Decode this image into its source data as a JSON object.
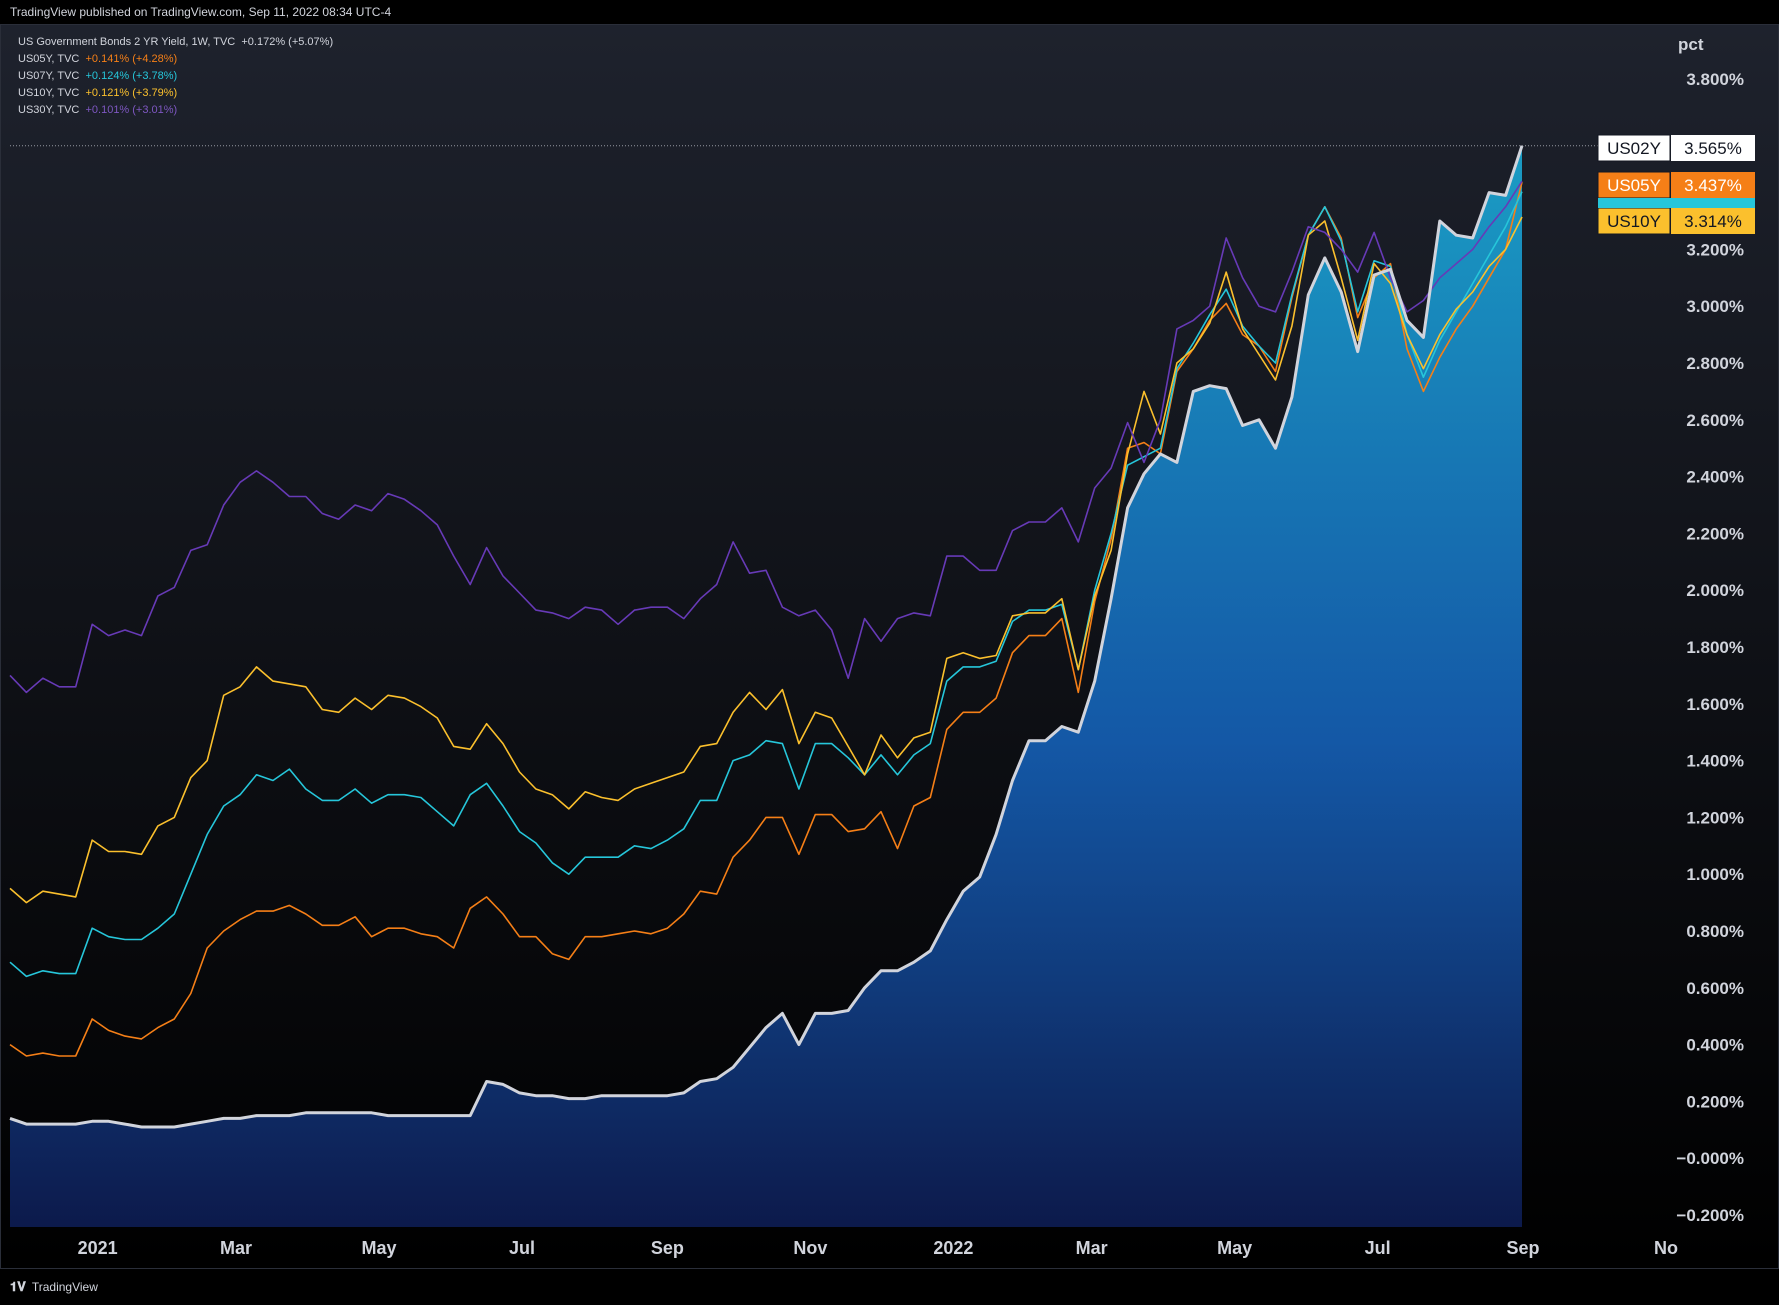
{
  "header": {
    "published": "TradingView published on TradingView.com, Sep 11, 2022 08:34 UTC-4"
  },
  "legend": [
    {
      "name": "US Government Bonds 2 YR Yield, 1W, TVC",
      "change": "+0.172% (+5.07%)",
      "color": "#d1d4dc"
    },
    {
      "name": "US05Y, TVC",
      "change": "+0.141% (+4.28%)",
      "color": "#f57f17"
    },
    {
      "name": "US07Y, TVC",
      "change": "+0.124% (+3.78%)",
      "color": "#26c6da"
    },
    {
      "name": "US10Y, TVC",
      "change": "+0.121% (+3.79%)",
      "color": "#fbc02d"
    },
    {
      "name": "US30Y, TVC",
      "change": "+0.101% (+3.01%)",
      "color": "#673ab7"
    }
  ],
  "footer": {
    "brand": "TradingView",
    "logo": "tradingview-logo-icon"
  },
  "chart_data": {
    "type": "line",
    "y_unit": "pct",
    "ylim": [
      -0.2,
      3.8
    ],
    "y_ticks": [
      "3.800%",
      "3.200%",
      "3.000%",
      "2.800%",
      "2.600%",
      "2.400%",
      "2.200%",
      "2.000%",
      "1.800%",
      "1.600%",
      "1.400%",
      "1.200%",
      "1.000%",
      "0.800%",
      "0.600%",
      "0.400%",
      "0.200%",
      "−0.000%",
      "−0.200%"
    ],
    "y_tick_values": [
      3.8,
      3.2,
      3.0,
      2.8,
      2.6,
      2.4,
      2.2,
      2.0,
      1.8,
      1.6,
      1.4,
      1.2,
      1.0,
      0.8,
      0.6,
      0.4,
      0.2,
      0.0,
      -0.2
    ],
    "x_ticks": [
      {
        "label": "2021",
        "bold": true,
        "date": "2021-01"
      },
      {
        "label": "Mar",
        "bold": false,
        "date": "2021-03"
      },
      {
        "label": "May",
        "bold": false,
        "date": "2021-05"
      },
      {
        "label": "Jul",
        "bold": false,
        "date": "2021-07"
      },
      {
        "label": "Sep",
        "bold": false,
        "date": "2021-09"
      },
      {
        "label": "Nov",
        "bold": false,
        "date": "2021-11"
      },
      {
        "label": "2022",
        "bold": true,
        "date": "2022-01"
      },
      {
        "label": "Mar",
        "bold": false,
        "date": "2022-03"
      },
      {
        "label": "May",
        "bold": false,
        "date": "2022-05"
      },
      {
        "label": "Jul",
        "bold": false,
        "date": "2022-07"
      },
      {
        "label": "Sep",
        "bold": false,
        "date": "2022-09"
      },
      {
        "label": "No",
        "bold": false,
        "date": "2022-11"
      }
    ],
    "x_start": "2020-12",
    "x_end": "2022-09",
    "series": [
      {
        "name": "US02Y",
        "color": "#d1d4dc",
        "area": true,
        "last": "3.565%",
        "values": [
          0.14,
          0.12,
          0.12,
          0.12,
          0.12,
          0.13,
          0.13,
          0.12,
          0.11,
          0.11,
          0.11,
          0.12,
          0.13,
          0.14,
          0.14,
          0.15,
          0.15,
          0.15,
          0.16,
          0.16,
          0.16,
          0.16,
          0.16,
          0.15,
          0.15,
          0.15,
          0.15,
          0.15,
          0.15,
          0.27,
          0.26,
          0.23,
          0.22,
          0.22,
          0.21,
          0.21,
          0.22,
          0.22,
          0.22,
          0.22,
          0.22,
          0.23,
          0.27,
          0.28,
          0.32,
          0.39,
          0.46,
          0.51,
          0.4,
          0.51,
          0.51,
          0.52,
          0.6,
          0.66,
          0.66,
          0.69,
          0.73,
          0.84,
          0.94,
          0.99,
          1.14,
          1.33,
          1.47,
          1.47,
          1.52,
          1.5,
          1.68,
          1.97,
          2.29,
          2.41,
          2.48,
          2.45,
          2.7,
          2.72,
          2.71,
          2.58,
          2.6,
          2.5,
          2.68,
          3.04,
          3.17,
          3.05,
          2.84,
          3.11,
          3.13,
          2.95,
          2.89,
          3.3,
          3.25,
          3.24,
          3.4,
          3.39,
          3.565
        ]
      },
      {
        "name": "US05Y",
        "color": "#f57f17",
        "area": false,
        "last": "3.437%",
        "values": [
          0.4,
          0.36,
          0.37,
          0.36,
          0.36,
          0.49,
          0.45,
          0.43,
          0.42,
          0.46,
          0.49,
          0.58,
          0.74,
          0.8,
          0.84,
          0.87,
          0.87,
          0.89,
          0.86,
          0.82,
          0.82,
          0.85,
          0.78,
          0.81,
          0.81,
          0.79,
          0.78,
          0.74,
          0.88,
          0.92,
          0.86,
          0.78,
          0.78,
          0.72,
          0.7,
          0.78,
          0.78,
          0.79,
          0.8,
          0.79,
          0.81,
          0.86,
          0.94,
          0.93,
          1.06,
          1.12,
          1.2,
          1.2,
          1.07,
          1.21,
          1.21,
          1.15,
          1.16,
          1.22,
          1.09,
          1.24,
          1.27,
          1.51,
          1.57,
          1.57,
          1.62,
          1.78,
          1.84,
          1.84,
          1.9,
          1.64,
          1.96,
          2.18,
          2.5,
          2.52,
          2.48,
          2.77,
          2.85,
          2.95,
          3.01,
          2.9,
          2.86,
          2.77,
          3.03,
          3.25,
          3.35,
          3.24,
          2.96,
          3.1,
          3.15,
          2.85,
          2.7,
          2.82,
          2.92,
          3.0,
          3.1,
          3.2,
          3.437
        ]
      },
      {
        "name": "US07Y",
        "color": "#26c6da",
        "area": false,
        "last": "3.403%",
        "values": [
          0.69,
          0.64,
          0.66,
          0.65,
          0.65,
          0.81,
          0.78,
          0.77,
          0.77,
          0.81,
          0.86,
          1.0,
          1.14,
          1.24,
          1.28,
          1.35,
          1.33,
          1.37,
          1.3,
          1.26,
          1.26,
          1.3,
          1.25,
          1.28,
          1.28,
          1.27,
          1.22,
          1.17,
          1.28,
          1.32,
          1.24,
          1.15,
          1.11,
          1.04,
          1.0,
          1.06,
          1.06,
          1.06,
          1.1,
          1.09,
          1.12,
          1.16,
          1.26,
          1.26,
          1.4,
          1.42,
          1.47,
          1.46,
          1.3,
          1.46,
          1.46,
          1.41,
          1.35,
          1.42,
          1.35,
          1.42,
          1.46,
          1.68,
          1.73,
          1.73,
          1.75,
          1.89,
          1.93,
          1.93,
          1.95,
          1.72,
          2.0,
          2.2,
          2.44,
          2.47,
          2.5,
          2.78,
          2.87,
          2.97,
          3.06,
          2.93,
          2.86,
          2.8,
          3.04,
          3.25,
          3.35,
          3.23,
          2.98,
          3.16,
          3.14,
          2.9,
          2.75,
          2.88,
          2.98,
          3.08,
          3.18,
          3.28,
          3.403
        ]
      },
      {
        "name": "US10Y",
        "color": "#fbc02d",
        "area": false,
        "last": "3.314%",
        "values": [
          0.95,
          0.9,
          0.94,
          0.93,
          0.92,
          1.12,
          1.08,
          1.08,
          1.07,
          1.17,
          1.2,
          1.34,
          1.4,
          1.63,
          1.66,
          1.73,
          1.68,
          1.67,
          1.66,
          1.58,
          1.57,
          1.62,
          1.58,
          1.63,
          1.62,
          1.59,
          1.55,
          1.45,
          1.44,
          1.53,
          1.46,
          1.36,
          1.3,
          1.28,
          1.23,
          1.29,
          1.27,
          1.26,
          1.3,
          1.32,
          1.34,
          1.36,
          1.45,
          1.46,
          1.57,
          1.64,
          1.58,
          1.65,
          1.46,
          1.57,
          1.55,
          1.45,
          1.35,
          1.49,
          1.41,
          1.48,
          1.5,
          1.76,
          1.78,
          1.76,
          1.77,
          1.91,
          1.92,
          1.92,
          1.97,
          1.72,
          1.98,
          2.14,
          2.48,
          2.7,
          2.55,
          2.8,
          2.85,
          2.94,
          3.12,
          2.92,
          2.83,
          2.74,
          2.93,
          3.25,
          3.3,
          3.1,
          2.88,
          3.15,
          3.08,
          2.9,
          2.78,
          2.9,
          2.99,
          3.05,
          3.14,
          3.2,
          3.314
        ]
      },
      {
        "name": "US30Y",
        "color": "#673ab7",
        "area": false,
        "last": "3.440%",
        "values": [
          1.7,
          1.64,
          1.69,
          1.66,
          1.66,
          1.88,
          1.84,
          1.86,
          1.84,
          1.98,
          2.01,
          2.14,
          2.16,
          2.3,
          2.38,
          2.42,
          2.38,
          2.33,
          2.33,
          2.27,
          2.25,
          2.3,
          2.28,
          2.34,
          2.32,
          2.28,
          2.23,
          2.12,
          2.02,
          2.15,
          2.05,
          1.99,
          1.93,
          1.92,
          1.9,
          1.94,
          1.93,
          1.88,
          1.93,
          1.94,
          1.94,
          1.9,
          1.97,
          2.02,
          2.17,
          2.06,
          2.07,
          1.94,
          1.91,
          1.93,
          1.86,
          1.69,
          1.9,
          1.82,
          1.9,
          1.92,
          1.91,
          2.12,
          2.12,
          2.07,
          2.07,
          2.21,
          2.24,
          2.24,
          2.29,
          2.17,
          2.36,
          2.43,
          2.59,
          2.45,
          2.6,
          2.92,
          2.95,
          3.0,
          3.24,
          3.1,
          3.0,
          2.98,
          3.12,
          3.28,
          3.26,
          3.2,
          3.12,
          3.26,
          3.1,
          2.98,
          3.02,
          3.1,
          3.15,
          3.2,
          3.28,
          3.35,
          3.44
        ]
      }
    ],
    "value_labels": [
      {
        "name": "US02Y",
        "value": "3.565%"
      },
      {
        "name": "US05Y",
        "value": "3.437%"
      },
      {
        "name": "US10Y",
        "value": "3.314%"
      }
    ]
  }
}
